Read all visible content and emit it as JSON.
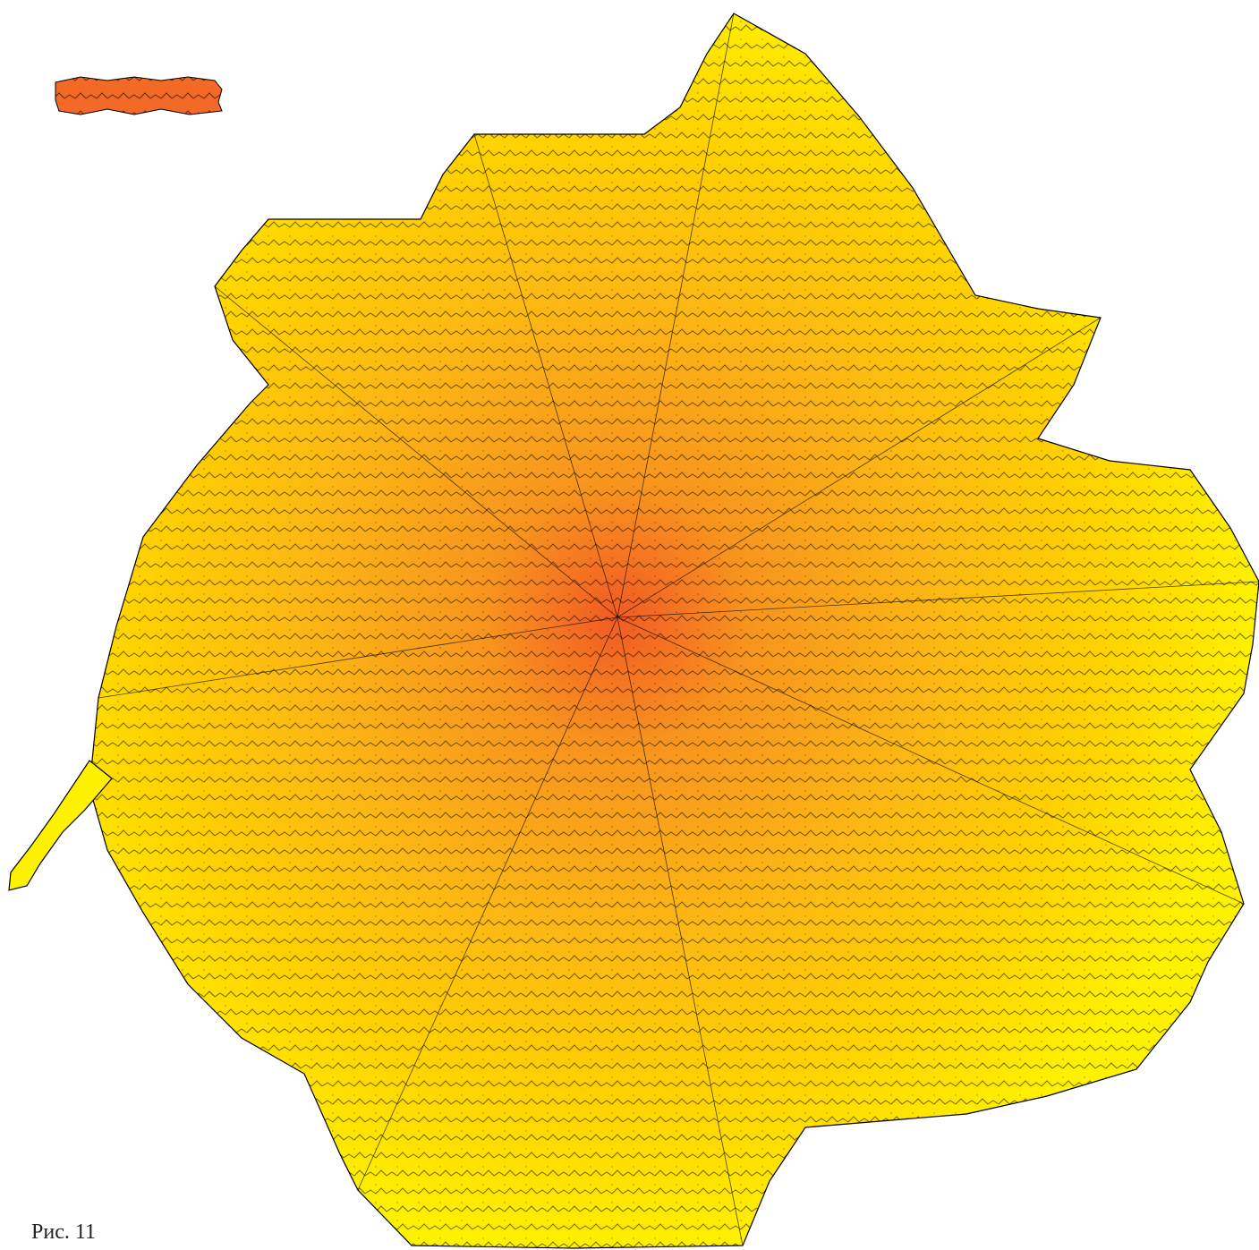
{
  "caption": "Рис. 11"
}
